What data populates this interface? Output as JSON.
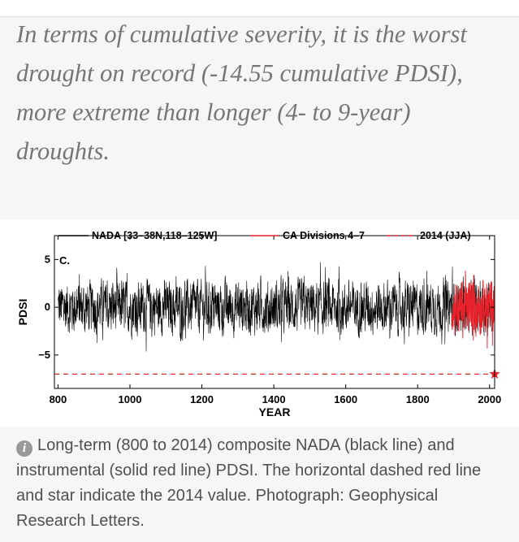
{
  "quote": {
    "text": "In terms of cumulative severity, it is the worst drought on record (-14.55 cumulative PDSI), more extreme than longer (4- to 9-year) droughts."
  },
  "caption": {
    "icon": "info-icon",
    "icon_glyph": "i",
    "text": "Long-term (800 to 2014) composite NADA (black line) and instrumental (solid red line) PDSI. The horizontal dashed red line and star indicate the 2014 value. Photograph: Geophysical Research Letters."
  },
  "chart_data": {
    "type": "line",
    "panel_label": "C.",
    "xlabel": "YEAR",
    "ylabel": "PDSI",
    "xlim": [
      790,
      2014
    ],
    "ylim": [
      -8.5,
      7.5
    ],
    "xticks": [
      800,
      1000,
      1200,
      1400,
      1600,
      1800,
      2000
    ],
    "yticks": [
      5,
      0,
      -5
    ],
    "ytick_labels": [
      "5",
      "0",
      "−5"
    ],
    "legend": {
      "position": "top",
      "entries": [
        {
          "label": "NADA [33–38N,118–125W]",
          "color": "#000000",
          "style": "solid"
        },
        {
          "label": "CA Divisions 4–7",
          "color": "#e8222a",
          "style": "solid"
        },
        {
          "label": "2014 (JJA)",
          "color": "#e8222a",
          "style": "dashed"
        }
      ]
    },
    "series": [
      {
        "name": "NADA [33–38N,118–125W]",
        "x_range": [
          800,
          2006
        ],
        "amplitude": 3.6,
        "color": "#000000"
      },
      {
        "name": "CA Divisions 4–7",
        "x_range": [
          1895,
          2014
        ],
        "amplitude": 3.8,
        "color": "#e8222a"
      }
    ],
    "reference": {
      "label": "2014 (JJA)",
      "year": 2014,
      "value": -7.0,
      "color": "#e8222a"
    }
  }
}
